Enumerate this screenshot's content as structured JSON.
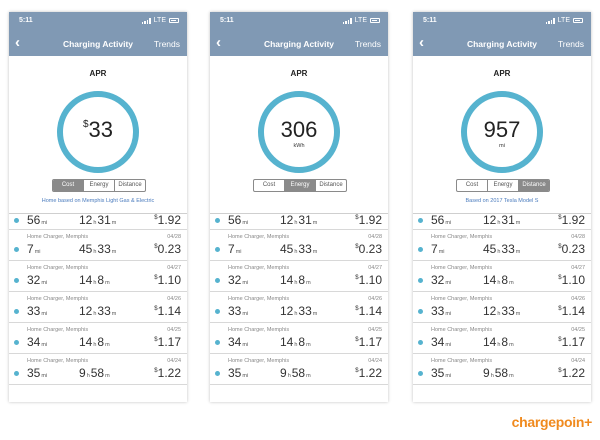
{
  "screens": [
    {
      "status_time": "5:11",
      "network": "LTE",
      "title": "Charging Activity",
      "trends": "Trends",
      "month": "APR",
      "ring_prefix": "$",
      "ring_value": "33",
      "ring_unit": "",
      "tabs": [
        "Cost",
        "Energy",
        "Distance"
      ],
      "active_tab": "Cost",
      "note": "Home based on Memphis Light Gas & Electric"
    },
    {
      "status_time": "5:11",
      "network": "LTE",
      "title": "Charging Activity",
      "trends": "Trends",
      "month": "APR",
      "ring_prefix": "",
      "ring_value": "306",
      "ring_unit": "kWh",
      "tabs": [
        "Cost",
        "Energy",
        "Distance"
      ],
      "active_tab": "Energy",
      "note": ""
    },
    {
      "status_time": "5:11",
      "network": "LTE",
      "title": "Charging Activity",
      "trends": "Trends",
      "month": "APR",
      "ring_prefix": "",
      "ring_value": "957",
      "ring_unit": "mi",
      "tabs": [
        "Cost",
        "Energy",
        "Distance"
      ],
      "active_tab": "Distance",
      "note": "Based on 2017 Tesla Model S"
    }
  ],
  "sessions": [
    {
      "location": "",
      "date": "",
      "miles": "56",
      "hours": "12",
      "minutes": "31",
      "cost": "1.92"
    },
    {
      "location": "Home Charger, Memphis",
      "date": "04/28",
      "miles": "7",
      "hours": "45",
      "minutes": "33",
      "cost": "0.23"
    },
    {
      "location": "Home Charger, Memphis",
      "date": "04/27",
      "miles": "32",
      "hours": "14",
      "minutes": "8",
      "cost": "1.10"
    },
    {
      "location": "Home Charger, Memphis",
      "date": "04/26",
      "miles": "33",
      "hours": "12",
      "minutes": "33",
      "cost": "1.14"
    },
    {
      "location": "Home Charger, Memphis",
      "date": "04/25",
      "miles": "34",
      "hours": "14",
      "minutes": "8",
      "cost": "1.17"
    },
    {
      "location": "Home Charger, Memphis",
      "date": "04/24",
      "miles": "35",
      "hours": "9",
      "minutes": "58",
      "cost": "1.22"
    }
  ],
  "units": {
    "miles": "mi",
    "hours": "h",
    "minutes": "m",
    "currency": "$"
  },
  "brand": {
    "logo_text": "chargepoin+",
    "accent": "#f08a1e"
  },
  "colors": {
    "header": "#8099b4",
    "ring": "#56b3cf",
    "link": "#4a7bbd"
  },
  "icons": {
    "back": "chevron-left-icon",
    "signal": "signal-icon",
    "battery": "battery-icon",
    "location": "location-arrow-icon"
  }
}
